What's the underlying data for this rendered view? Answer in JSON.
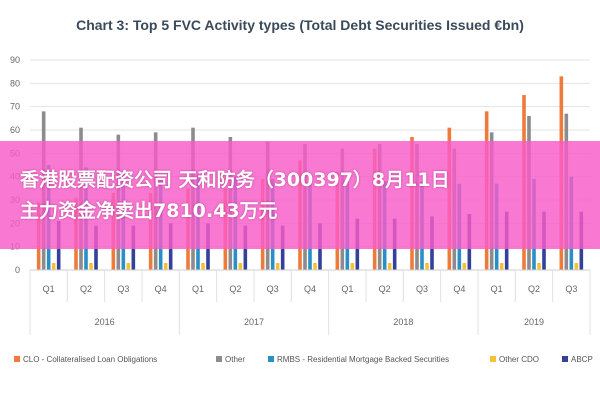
{
  "chart_data": {
    "type": "bar",
    "title": "Chart 3: Top 5 FVC Activity types (Total Debt Securities Issued €bn)",
    "xlabel": "",
    "ylabel": "",
    "ylim": [
      0,
      90
    ],
    "yticks": [
      "0",
      "10",
      "20",
      "30",
      "40",
      "50",
      "60",
      "70",
      "80",
      "90"
    ],
    "grid": true,
    "legend_position": "bottom",
    "categories": [
      "Q1",
      "Q2",
      "Q3",
      "Q4",
      "Q1",
      "Q2",
      "Q3",
      "Q4",
      "Q1",
      "Q2",
      "Q3",
      "Q4",
      "Q1",
      "Q2",
      "Q3"
    ],
    "groups": [
      {
        "label": "2016",
        "start": 0,
        "end": 3
      },
      {
        "label": "2017",
        "start": 4,
        "end": 7
      },
      {
        "label": "2018",
        "start": 8,
        "end": 11
      },
      {
        "label": "2019",
        "start": 12,
        "end": 14
      }
    ],
    "series": [
      {
        "name": "CLO - Collateralised Loan Obligations",
        "color": "#f07a3c",
        "values": [
          29,
          31,
          33,
          33,
          35,
          35,
          39,
          47,
          42,
          52,
          57,
          61,
          68,
          75,
          83
        ]
      },
      {
        "name": "Other",
        "color": "#8c8c8c",
        "values": [
          68,
          61,
          58,
          59,
          61,
          57,
          55,
          54,
          52,
          54,
          54,
          52,
          59,
          66,
          67
        ]
      },
      {
        "name": "RMBS - Residential Mortgage Backed Securities",
        "color": "#2a8fc7",
        "values": [
          45,
          44,
          41,
          39,
          41,
          40,
          39,
          38,
          38,
          38,
          38,
          37,
          37,
          39,
          40
        ]
      },
      {
        "name": "Other CDO",
        "color": "#f2c23a",
        "values": [
          3,
          3,
          3,
          3,
          3,
          3,
          3,
          3,
          3,
          3,
          3,
          3,
          3,
          3,
          3
        ]
      },
      {
        "name": "ABCP",
        "color": "#34409a",
        "values": [
          21,
          19,
          19,
          20,
          20,
          19,
          19,
          20,
          22,
          22,
          23,
          24,
          25,
          25,
          25
        ]
      }
    ]
  },
  "banner": {
    "line1": "香港股票配资公司 天和防务（300397）8月11日",
    "line2": "主力资金净卖出7810.43万元"
  }
}
